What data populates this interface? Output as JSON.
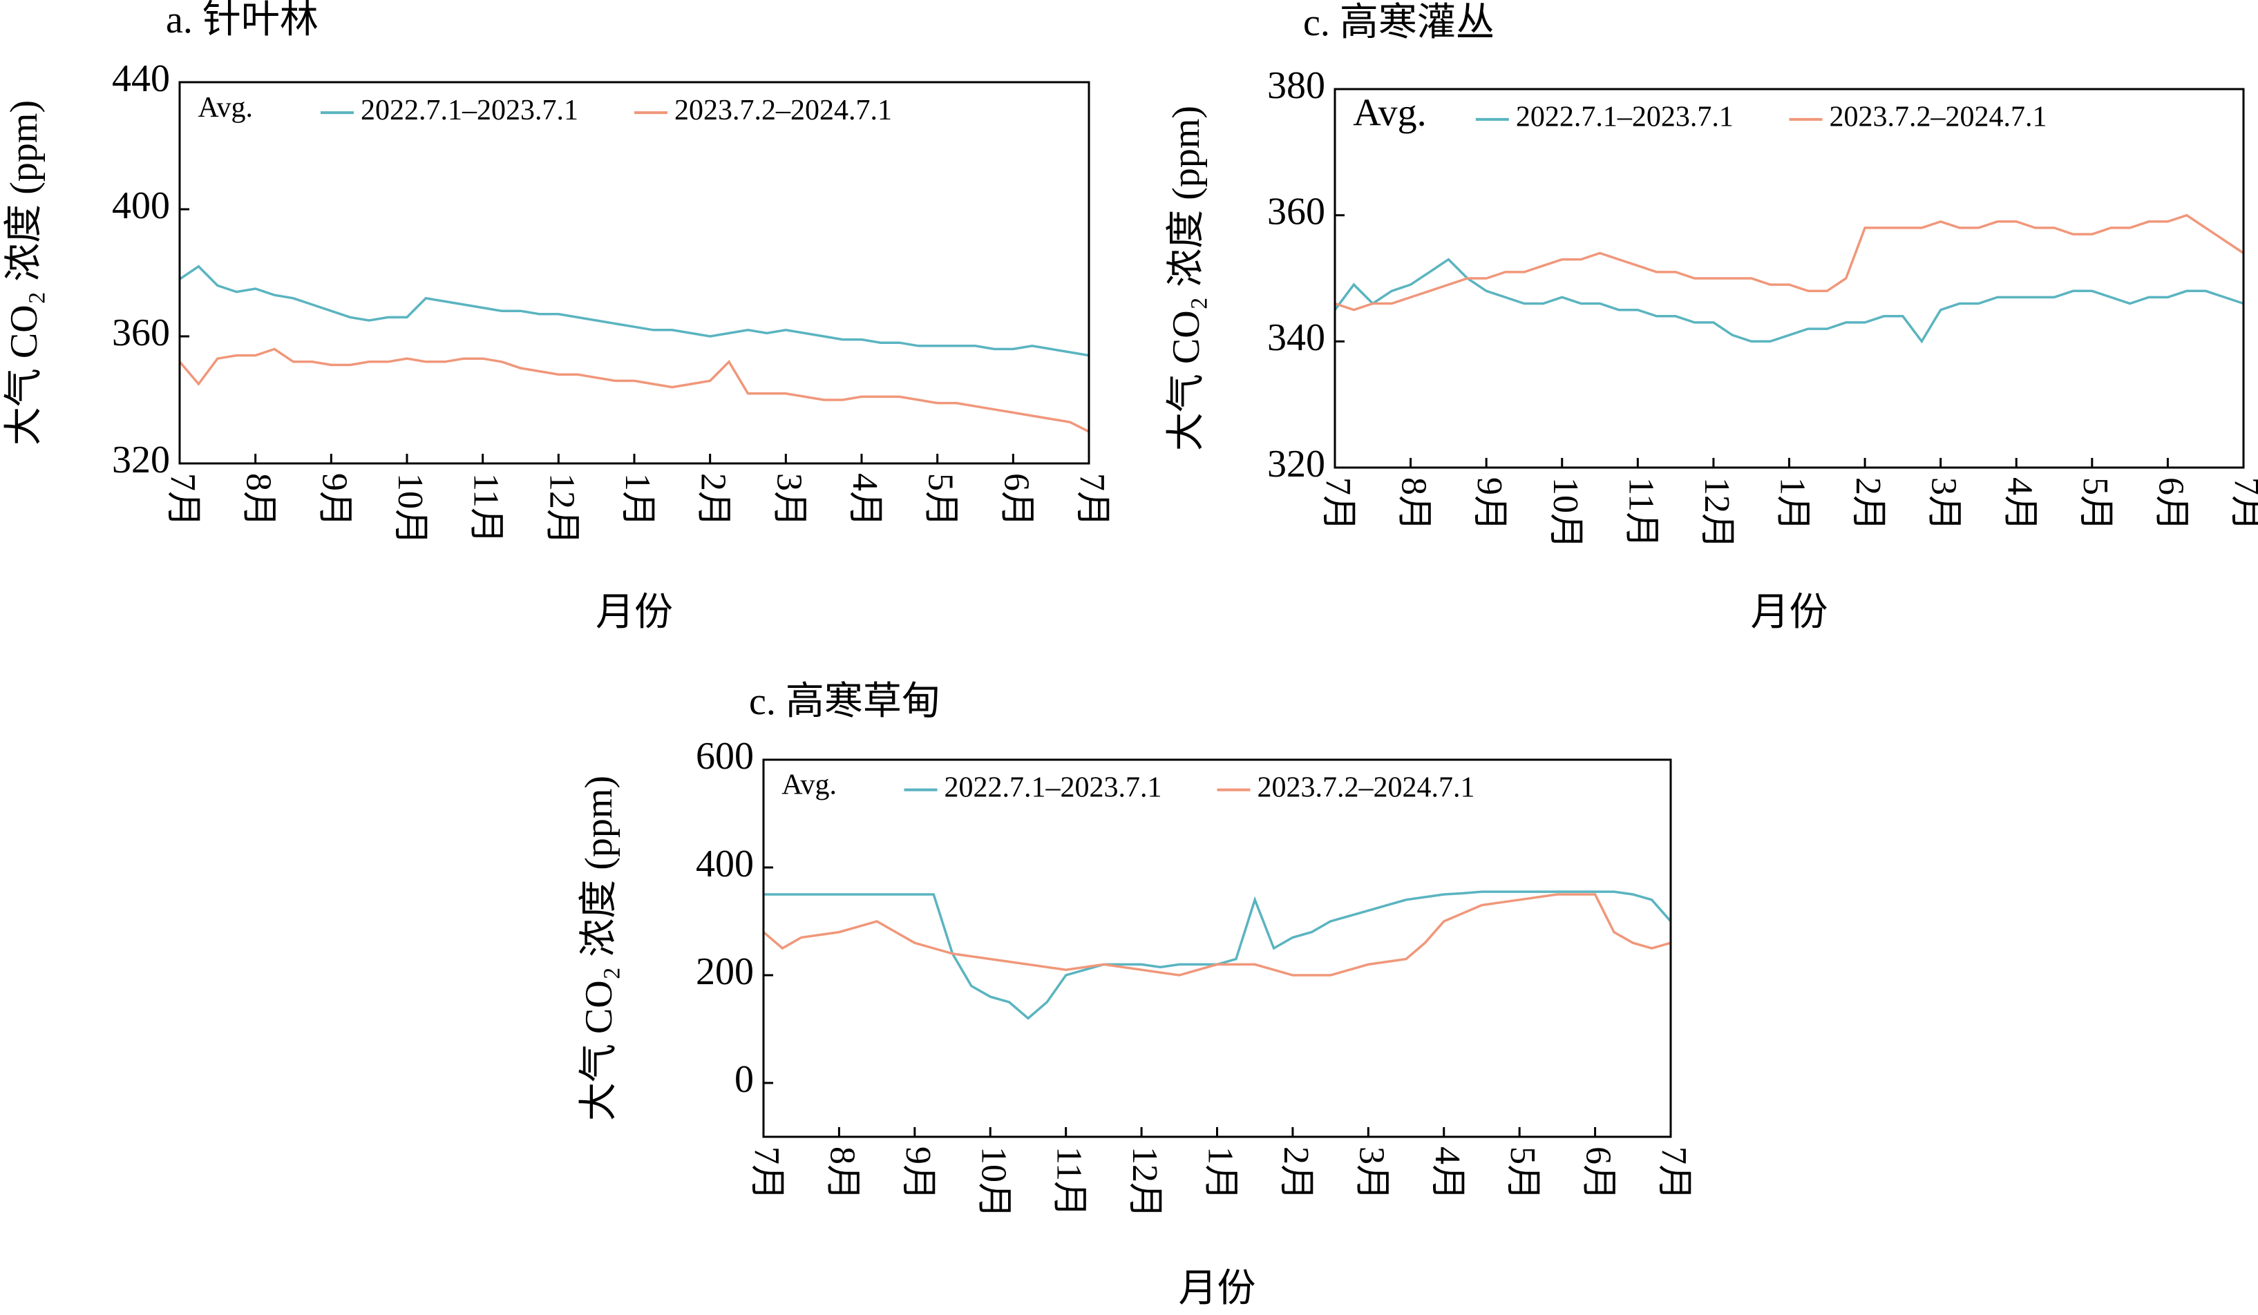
{
  "chart_data": [
    {
      "type": "line",
      "title": "a. 针叶林",
      "ylabel": "大气 CO₂ 浓度 (ppm)",
      "xlabel": "月份",
      "legend_title": "Avg.",
      "xlim": [
        0,
        12
      ],
      "xticks": [
        {
          "value": 0,
          "label": "7月"
        },
        {
          "value": 1,
          "label": "8月"
        },
        {
          "value": 2,
          "label": "9月"
        },
        {
          "value": 3,
          "label": "10月"
        },
        {
          "value": 4,
          "label": "11月"
        },
        {
          "value": 5,
          "label": "12月"
        },
        {
          "value": 6,
          "label": "1月"
        },
        {
          "value": 7,
          "label": "2月"
        },
        {
          "value": 8,
          "label": "3月"
        },
        {
          "value": 9,
          "label": "4月"
        },
        {
          "value": 10,
          "label": "5月"
        },
        {
          "value": 11,
          "label": "6月"
        },
        {
          "value": 12,
          "label": "7月"
        }
      ],
      "ylim": [
        320,
        440
      ],
      "yticks": [
        320,
        360,
        400,
        440
      ],
      "x": [
        0,
        0.25,
        0.5,
        0.75,
        1,
        1.25,
        1.5,
        1.75,
        2,
        2.25,
        2.5,
        2.75,
        3,
        3.25,
        3.5,
        3.75,
        4,
        4.25,
        4.5,
        4.75,
        5,
        5.25,
        5.5,
        5.75,
        6,
        6.25,
        6.5,
        6.75,
        7,
        7.25,
        7.5,
        7.75,
        8,
        8.25,
        8.5,
        8.75,
        9,
        9.25,
        9.5,
        9.75,
        10,
        10.25,
        10.5,
        10.75,
        11,
        11.25,
        11.5,
        11.75,
        12
      ],
      "series": [
        {
          "name": "2022.7.1–2023.7.1",
          "color": "#5ab4c0",
          "values": [
            378,
            382,
            376,
            374,
            375,
            373,
            372,
            370,
            368,
            366,
            365,
            366,
            366,
            372,
            371,
            370,
            369,
            368,
            368,
            367,
            367,
            366,
            365,
            364,
            363,
            362,
            362,
            361,
            360,
            361,
            362,
            361,
            362,
            361,
            360,
            359,
            359,
            358,
            358,
            357,
            357,
            357,
            357,
            356,
            356,
            357,
            356,
            355,
            354
          ]
        },
        {
          "name": "2023.7.2–2024.7.1",
          "color": "#f0977a",
          "values": [
            352,
            345,
            353,
            354,
            354,
            356,
            352,
            352,
            351,
            351,
            352,
            352,
            353,
            352,
            352,
            353,
            353,
            352,
            350,
            349,
            348,
            348,
            347,
            346,
            346,
            345,
            344,
            345,
            346,
            352,
            342,
            342,
            342,
            341,
            340,
            340,
            341,
            341,
            341,
            340,
            339,
            339,
            338,
            337,
            336,
            335,
            334,
            333,
            330
          ]
        }
      ]
    },
    {
      "type": "line",
      "title": "c. 高寒灌丛",
      "ylabel": "大气 CO₂ 浓度 (ppm)",
      "xlabel": "月份",
      "legend_title": "Avg.",
      "xlim": [
        0,
        12
      ],
      "xticks": [
        {
          "value": 0,
          "label": "7月"
        },
        {
          "value": 1,
          "label": "8月"
        },
        {
          "value": 2,
          "label": "9月"
        },
        {
          "value": 3,
          "label": "10月"
        },
        {
          "value": 4,
          "label": "11月"
        },
        {
          "value": 5,
          "label": "12月"
        },
        {
          "value": 6,
          "label": "1月"
        },
        {
          "value": 7,
          "label": "2月"
        },
        {
          "value": 8,
          "label": "3月"
        },
        {
          "value": 9,
          "label": "4月"
        },
        {
          "value": 10,
          "label": "5月"
        },
        {
          "value": 11,
          "label": "6月"
        },
        {
          "value": 12,
          "label": "7月"
        }
      ],
      "ylim": [
        320,
        380
      ],
      "yticks": [
        320,
        340,
        360,
        380
      ],
      "x": [
        0,
        0.25,
        0.5,
        0.75,
        1,
        1.25,
        1.5,
        1.75,
        2,
        2.25,
        2.5,
        2.75,
        3,
        3.25,
        3.5,
        3.75,
        4,
        4.25,
        4.5,
        4.75,
        5,
        5.25,
        5.5,
        5.75,
        6,
        6.25,
        6.5,
        6.75,
        7,
        7.25,
        7.5,
        7.75,
        8,
        8.25,
        8.5,
        8.75,
        9,
        9.25,
        9.5,
        9.75,
        10,
        10.25,
        10.5,
        10.75,
        11,
        11.25,
        11.5,
        11.75,
        12
      ],
      "series": [
        {
          "name": "2022.7.1–2023.7.1",
          "color": "#5ab4c0",
          "values": [
            345,
            349,
            346,
            348,
            349,
            351,
            353,
            350,
            348,
            347,
            346,
            346,
            347,
            346,
            346,
            345,
            345,
            344,
            344,
            343,
            343,
            341,
            340,
            340,
            341,
            342,
            342,
            343,
            343,
            344,
            344,
            340,
            345,
            346,
            346,
            347,
            347,
            347,
            347,
            348,
            348,
            347,
            346,
            347,
            347,
            348,
            348,
            347,
            346
          ]
        },
        {
          "name": "2023.7.2–2024.7.1",
          "color": "#f0977a",
          "values": [
            346,
            345,
            346,
            346,
            347,
            348,
            349,
            350,
            350,
            351,
            351,
            352,
            353,
            353,
            354,
            353,
            352,
            351,
            351,
            350,
            350,
            350,
            350,
            349,
            349,
            348,
            348,
            350,
            358,
            358,
            358,
            358,
            359,
            358,
            358,
            359,
            359,
            358,
            358,
            357,
            357,
            358,
            358,
            359,
            359,
            360,
            358,
            356,
            354
          ]
        }
      ]
    },
    {
      "type": "line",
      "title": "c. 高寒草甸",
      "ylabel": "大气 CO₂ 浓度 (ppm)",
      "xlabel": "月份",
      "legend_title": "Avg.",
      "xlim": [
        0,
        12
      ],
      "xticks": [
        {
          "value": 0,
          "label": "7月"
        },
        {
          "value": 1,
          "label": "8月"
        },
        {
          "value": 2,
          "label": "9月"
        },
        {
          "value": 3,
          "label": "10月"
        },
        {
          "value": 4,
          "label": "11月"
        },
        {
          "value": 5,
          "label": "12月"
        },
        {
          "value": 6,
          "label": "1月"
        },
        {
          "value": 7,
          "label": "2月"
        },
        {
          "value": 8,
          "label": "3月"
        },
        {
          "value": 9,
          "label": "4月"
        },
        {
          "value": 10,
          "label": "5月"
        },
        {
          "value": 11,
          "label": "6月"
        },
        {
          "value": 12,
          "label": "7月"
        }
      ],
      "ylim": [
        -100,
        600
      ],
      "yticks": [
        0,
        200,
        400,
        600
      ],
      "x": [
        0,
        0.25,
        0.5,
        0.75,
        1,
        1.25,
        1.5,
        1.75,
        2,
        2.25,
        2.5,
        2.75,
        3,
        3.25,
        3.5,
        3.75,
        4,
        4.25,
        4.5,
        4.75,
        5,
        5.25,
        5.5,
        5.75,
        6,
        6.25,
        6.5,
        6.75,
        7,
        7.25,
        7.5,
        7.75,
        8,
        8.25,
        8.5,
        8.75,
        9,
        9.25,
        9.5,
        9.75,
        10,
        10.25,
        10.5,
        10.75,
        11,
        11.25,
        11.5,
        11.75,
        12
      ],
      "series": [
        {
          "name": "2022.7.1–2023.7.1",
          "color": "#5ab4c0",
          "values": [
            350,
            350,
            350,
            350,
            350,
            350,
            350,
            350,
            350,
            350,
            240,
            180,
            160,
            150,
            120,
            150,
            200,
            210,
            220,
            220,
            220,
            215,
            220,
            220,
            220,
            230,
            340,
            250,
            270,
            280,
            300,
            310,
            320,
            330,
            340,
            345,
            350,
            352,
            355,
            355,
            355,
            355,
            355,
            355,
            355,
            355,
            350,
            340,
            300
          ]
        },
        {
          "name": "2023.7.2–2024.7.1",
          "color": "#f0977a",
          "values": [
            280,
            250,
            270,
            275,
            280,
            290,
            300,
            280,
            260,
            250,
            240,
            235,
            230,
            225,
            220,
            215,
            210,
            215,
            220,
            215,
            210,
            205,
            200,
            210,
            220,
            220,
            220,
            210,
            200,
            200,
            200,
            210,
            220,
            225,
            230,
            260,
            300,
            315,
            330,
            335,
            340,
            345,
            350,
            350,
            350,
            280,
            260,
            250,
            260
          ]
        }
      ]
    }
  ]
}
